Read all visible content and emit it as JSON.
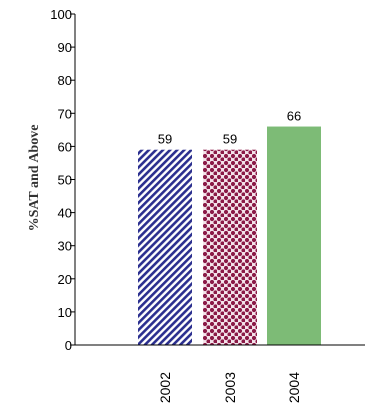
{
  "chart_data": {
    "type": "bar",
    "categories": [
      "2002",
      "2003",
      "2004"
    ],
    "values": [
      59,
      59,
      66
    ],
    "data_labels": [
      "59",
      "59",
      "66"
    ],
    "title": "",
    "xlabel": "",
    "ylabel": "%SAT and Above",
    "ylim": [
      0,
      100
    ],
    "yticks": [
      "0",
      "10",
      "20",
      "30",
      "40",
      "50",
      "60",
      "70",
      "80",
      "90",
      "100"
    ],
    "grid": false,
    "bar_styles": [
      {
        "pattern": "diagonal-stripes",
        "color": "#2b2f8f",
        "background": "#ffffff"
      },
      {
        "pattern": "dots",
        "color": "#8b1a47",
        "background": "#ffffff"
      },
      {
        "pattern": "solid",
        "color": "#7dbb76"
      }
    ]
  }
}
